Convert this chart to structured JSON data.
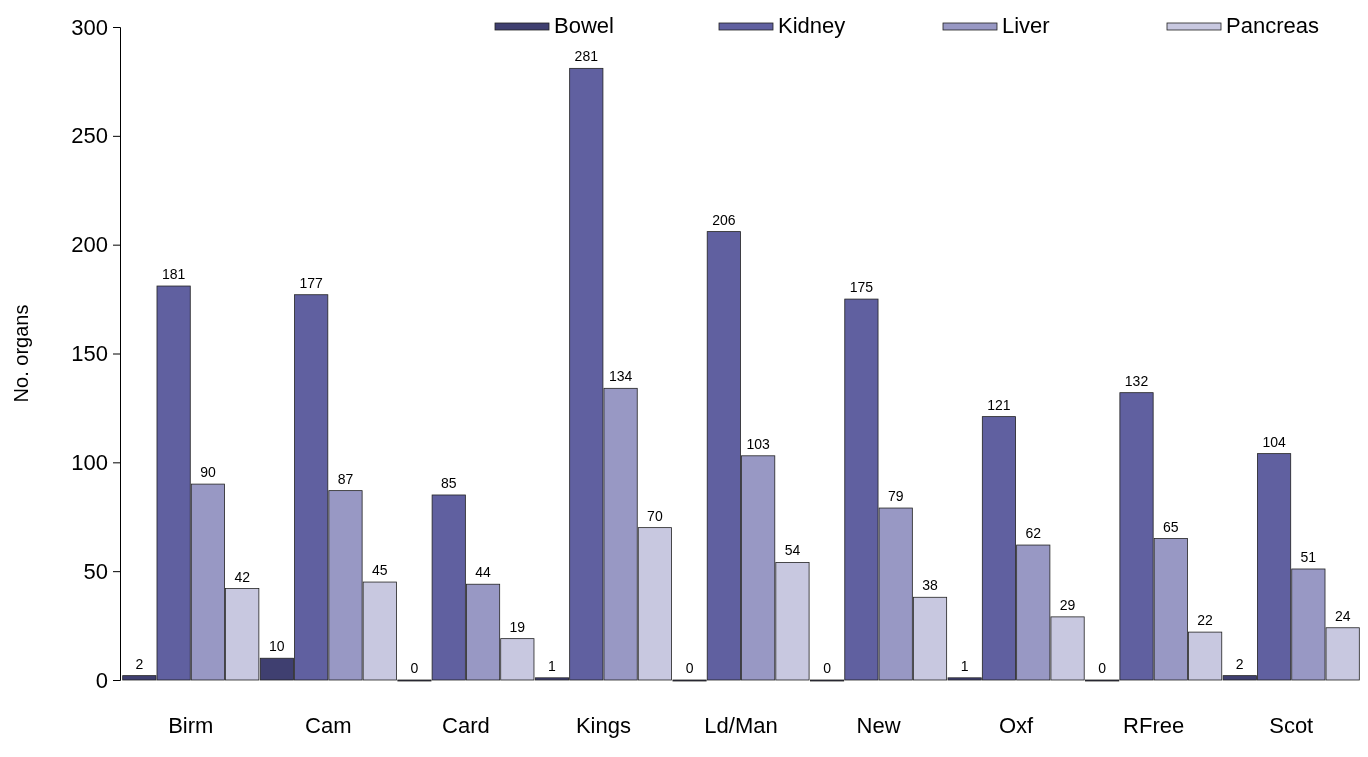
{
  "chart_data": {
    "type": "bar",
    "ylabel": "No. organs",
    "categories": [
      "Birm",
      "Cam",
      "Card",
      "Kings",
      "Ld/Man",
      "New",
      "Oxf",
      "RFree",
      "Scot"
    ],
    "series": [
      {
        "name": "Bowel",
        "color": "#3f3f70",
        "values": [
          2,
          10,
          0,
          1,
          0,
          0,
          1,
          0,
          2
        ]
      },
      {
        "name": "Kidney",
        "color": "#6060a0",
        "values": [
          181,
          177,
          85,
          281,
          206,
          175,
          121,
          132,
          104
        ]
      },
      {
        "name": "Liver",
        "color": "#9898c4",
        "values": [
          90,
          87,
          44,
          134,
          103,
          79,
          62,
          65,
          51
        ]
      },
      {
        "name": "Pancreas",
        "color": "#c8c8e0",
        "values": [
          42,
          45,
          19,
          70,
          54,
          38,
          29,
          22,
          24
        ]
      }
    ],
    "ylim": [
      0,
      300
    ],
    "yticks": [
      0,
      50,
      100,
      150,
      200,
      250,
      300
    ],
    "grid": false,
    "legend": "top right",
    "data_labels": true
  }
}
